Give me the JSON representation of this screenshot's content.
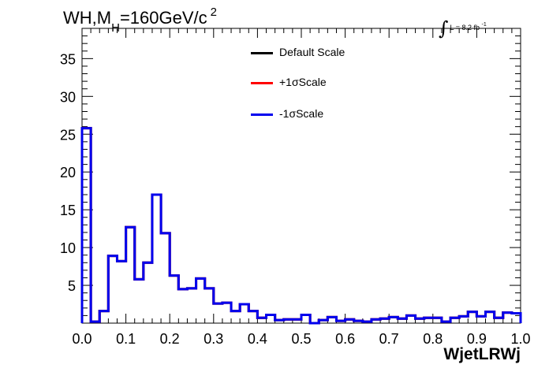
{
  "header": {
    "title_main": "WH,M",
    "title_sub": "H",
    "title_rest": "=160GeV/c",
    "title_sup": "2",
    "lumi_text": "L = 8.2 fb",
    "lumi_sup": "-1"
  },
  "colors": {
    "default": "#000000",
    "up": "#ff0000",
    "down": "#0000ee"
  },
  "chart_data": {
    "type": "line",
    "style": "step-histogram",
    "xlabel": "WjetLRWj",
    "ylabel": "",
    "xlim": [
      0.0,
      1.0
    ],
    "ylim": [
      0,
      39
    ],
    "x_ticks": [
      "0.0",
      "0.1",
      "0.2",
      "0.3",
      "0.4",
      "0.5",
      "0.6",
      "0.7",
      "0.8",
      "0.9",
      "1.0"
    ],
    "y_ticks": [
      "5",
      "10",
      "15",
      "20",
      "25",
      "30",
      "35"
    ],
    "legend_position": "top-center",
    "bin_edges": [
      0.0,
      0.02,
      0.04,
      0.06,
      0.08,
      0.1,
      0.12,
      0.14,
      0.16,
      0.18,
      0.2,
      0.22,
      0.24,
      0.26,
      0.28,
      0.3,
      0.32,
      0.34,
      0.36,
      0.38,
      0.4,
      0.42,
      0.44,
      0.46,
      0.48,
      0.5,
      0.52,
      0.54,
      0.56,
      0.58,
      0.6,
      0.62,
      0.64,
      0.66,
      0.68,
      0.7,
      0.72,
      0.74,
      0.76,
      0.78,
      0.8,
      0.82,
      0.84,
      0.86,
      0.88,
      0.9,
      0.92,
      0.94,
      0.96,
      0.98,
      1.0
    ],
    "series": [
      {
        "name": "Default Scale",
        "color": "#000000",
        "values": [
          25.8,
          0.2,
          1.6,
          8.9,
          8.2,
          12.7,
          5.8,
          8.0,
          17.0,
          11.9,
          6.3,
          4.5,
          4.6,
          5.9,
          4.6,
          2.6,
          2.7,
          1.6,
          2.5,
          1.6,
          0.7,
          1.1,
          0.4,
          0.5,
          0.5,
          1.1,
          0.0,
          0.4,
          0.8,
          0.3,
          0.5,
          0.3,
          0.2,
          0.5,
          0.6,
          0.8,
          0.6,
          1.0,
          0.6,
          0.7,
          0.7,
          0.2,
          0.7,
          0.9,
          1.5,
          0.9,
          1.5,
          0.7,
          1.4,
          1.3
        ]
      },
      {
        "name": "+1σScale",
        "color": "#ff0000",
        "values": [
          25.8,
          0.2,
          1.6,
          8.9,
          8.2,
          12.7,
          5.8,
          8.0,
          17.0,
          11.9,
          6.3,
          4.5,
          4.6,
          5.9,
          4.6,
          2.6,
          2.7,
          1.6,
          2.5,
          1.6,
          0.7,
          1.1,
          0.4,
          0.5,
          0.5,
          1.1,
          0.0,
          0.4,
          0.8,
          0.3,
          0.5,
          0.3,
          0.2,
          0.5,
          0.6,
          0.8,
          0.6,
          1.0,
          0.6,
          0.7,
          0.7,
          0.2,
          0.7,
          0.9,
          1.5,
          0.9,
          1.5,
          0.7,
          1.4,
          1.3
        ]
      },
      {
        "name": "-1σScale",
        "color": "#0000ee",
        "values": [
          25.8,
          0.2,
          1.6,
          8.9,
          8.2,
          12.7,
          5.8,
          8.0,
          17.0,
          11.9,
          6.3,
          4.5,
          4.6,
          5.9,
          4.6,
          2.6,
          2.7,
          1.6,
          2.5,
          1.6,
          0.7,
          1.1,
          0.4,
          0.5,
          0.5,
          1.1,
          0.0,
          0.4,
          0.8,
          0.3,
          0.5,
          0.3,
          0.2,
          0.5,
          0.6,
          0.8,
          0.6,
          1.0,
          0.6,
          0.7,
          0.7,
          0.2,
          0.7,
          0.9,
          1.5,
          0.9,
          1.5,
          0.7,
          1.4,
          1.3
        ]
      }
    ]
  }
}
